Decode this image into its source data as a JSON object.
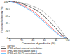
{
  "chart_data": {
    "type": "line",
    "xlabel": "Conversion of product in (%)",
    "ylabel": "Fraction of selectivity (%)",
    "x": [
      0,
      5,
      10,
      15,
      20,
      25,
      30,
      35,
      40,
      45,
      50,
      55,
      60,
      65,
      70,
      75,
      80,
      85,
      90,
      95,
      100
    ],
    "xlim": [
      0,
      100
    ],
    "ylim": [
      0,
      100
    ],
    "xticks": [
      0,
      20,
      40,
      60,
      80,
      100
    ],
    "yticks": [
      0,
      20,
      40,
      60,
      80,
      100
    ],
    "series": [
      {
        "name": "LBFSC",
        "color": "#888888",
        "line_style": "dashed",
        "values": [
          100,
          99.5,
          98.8,
          97.8,
          96.5,
          94.8,
          92.8,
          90.3,
          87.3,
          84.0,
          80.0,
          75.5,
          70.0,
          63.5,
          56.5,
          48.5,
          39.5,
          29.5,
          18.5,
          8.0,
          0
        ]
      },
      {
        "name": "LFSC without external recirculation",
        "color": "#333333",
        "line_style": "solid",
        "values": [
          100,
          99.2,
          98.0,
          96.5,
          94.5,
          92.0,
          89.0,
          85.5,
          81.5,
          77.0,
          72.0,
          66.0,
          59.5,
          52.0,
          44.0,
          35.5,
          27.0,
          18.0,
          10.0,
          3.5,
          0
        ]
      },
      {
        "name": "LFSC with recirculation ratio 2",
        "color": "#FF5555",
        "line_style": "solid",
        "values": [
          100,
          98.5,
          96.5,
          94.0,
          91.0,
          87.5,
          83.5,
          79.0,
          74.0,
          68.5,
          62.0,
          55.0,
          47.5,
          40.0,
          32.5,
          25.0,
          17.5,
          11.0,
          5.5,
          1.5,
          0
        ]
      },
      {
        "name": "LFSC with 16.7% recirculated ratio",
        "color": "#55BBFF",
        "line_style": "solid",
        "values": [
          100,
          98.0,
          95.5,
          92.5,
          89.0,
          85.0,
          80.5,
          75.5,
          70.0,
          64.0,
          57.5,
          50.5,
          43.0,
          35.5,
          28.5,
          21.5,
          15.0,
          9.0,
          4.0,
          1.0,
          0
        ]
      }
    ]
  }
}
